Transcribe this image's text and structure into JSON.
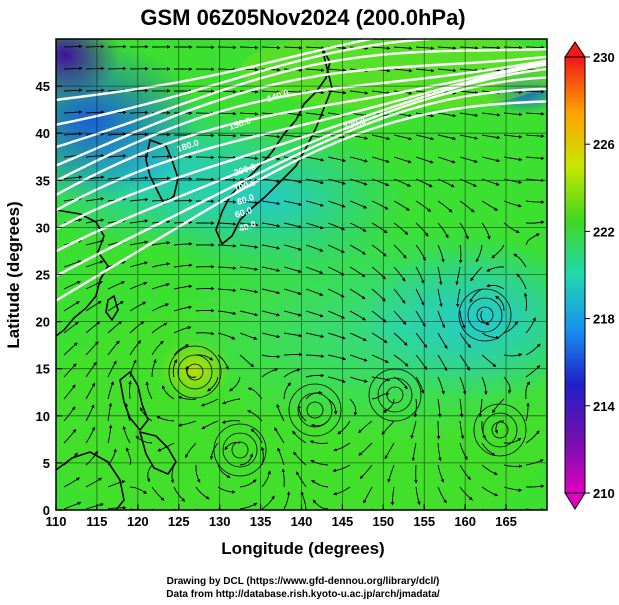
{
  "title": "GSM 06Z05Nov2024 (200.0hPa)",
  "xlabel": "Longitude (degrees)",
  "ylabel": "Latitude  (degrees)",
  "x_ticks": [
    "110",
    "115",
    "120",
    "125",
    "130",
    "135",
    "140",
    "145",
    "150",
    "155",
    "160",
    "165"
  ],
  "y_ticks": [
    "0",
    "5",
    "10",
    "15",
    "20",
    "25",
    "30",
    "35",
    "40",
    "45"
  ],
  "colorbar": {
    "ticks": [
      "230",
      "226",
      "222",
      "218",
      "214",
      "210"
    ],
    "colors": [
      "#f01818",
      "#ffa000",
      "#c8e600",
      "#40d820",
      "#20d8b0",
      "#1890f0",
      "#2020c8",
      "#7010b0",
      "#e000c0"
    ]
  },
  "footer": {
    "line1": "Drawing by DCL (https://www.gfd-dennou.org/library/dcl/)",
    "line2": "Data from http://database.rish.kyoto-u.ac.jp/arch/jmadata/"
  },
  "chart_data": {
    "type": "heatmap",
    "title": "GSM 06Z05Nov2024 (200.0hPa)",
    "xlabel": "Longitude (degrees)",
    "ylabel": "Latitude  (degrees)",
    "xlim": [
      110,
      170
    ],
    "ylim": [
      0,
      50
    ],
    "colorbar_range": [
      210,
      230
    ],
    "grid": true,
    "overlays": [
      "streamlines",
      "wind-speed contours"
    ],
    "contour_labels": [
      "180.0",
      "200.0",
      "150.0",
      "140.0",
      "120.0",
      "100.0",
      "80.0",
      "60.0",
      "40.0"
    ]
  }
}
